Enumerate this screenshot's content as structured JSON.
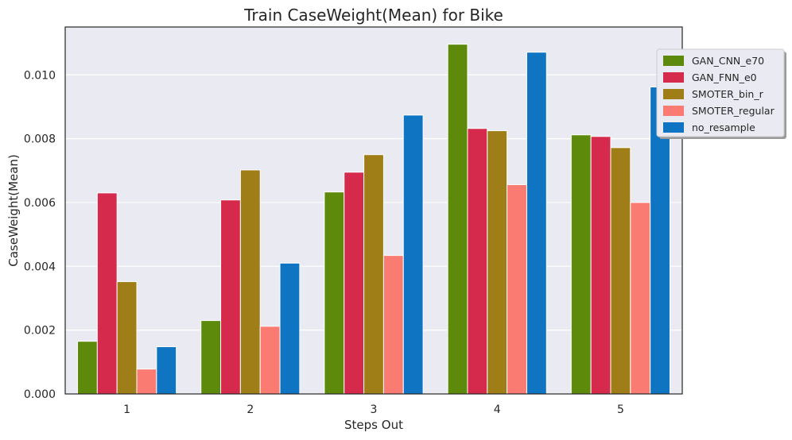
{
  "chart_data": {
    "type": "bar",
    "title": "Train CaseWeight(Mean) for Bike",
    "xlabel": "Steps Out",
    "ylabel": "CaseWeight(Mean)",
    "categories": [
      "1",
      "2",
      "3",
      "4",
      "5"
    ],
    "ylim": [
      0,
      0.0115
    ],
    "yticks": [
      "0.000",
      "0.002",
      "0.004",
      "0.006",
      "0.008",
      "0.010"
    ],
    "ytick_values": [
      0,
      0.002,
      0.004,
      0.006,
      0.008,
      0.01
    ],
    "grid": true,
    "legend_position": "top-right (outside)",
    "series": [
      {
        "name": "GAN_CNN_e70",
        "color": "#5e8a0c",
        "values": [
          0.00165,
          0.0023,
          0.00633,
          0.01096,
          0.00812
        ]
      },
      {
        "name": "GAN_FNN_e0",
        "color": "#d62a4c",
        "values": [
          0.0063,
          0.00608,
          0.00695,
          0.00832,
          0.00807
        ]
      },
      {
        "name": "SMOTER_bin_r",
        "color": "#a07e17",
        "values": [
          0.00352,
          0.00702,
          0.0075,
          0.00825,
          0.00772
        ]
      },
      {
        "name": "SMOTER_regular",
        "color": "#fa7b72",
        "values": [
          0.00078,
          0.00212,
          0.00434,
          0.00656,
          0.006
        ]
      },
      {
        "name": "no_resample",
        "color": "#0f75c2",
        "values": [
          0.00148,
          0.0041,
          0.00874,
          0.01071,
          0.00962
        ]
      }
    ]
  }
}
